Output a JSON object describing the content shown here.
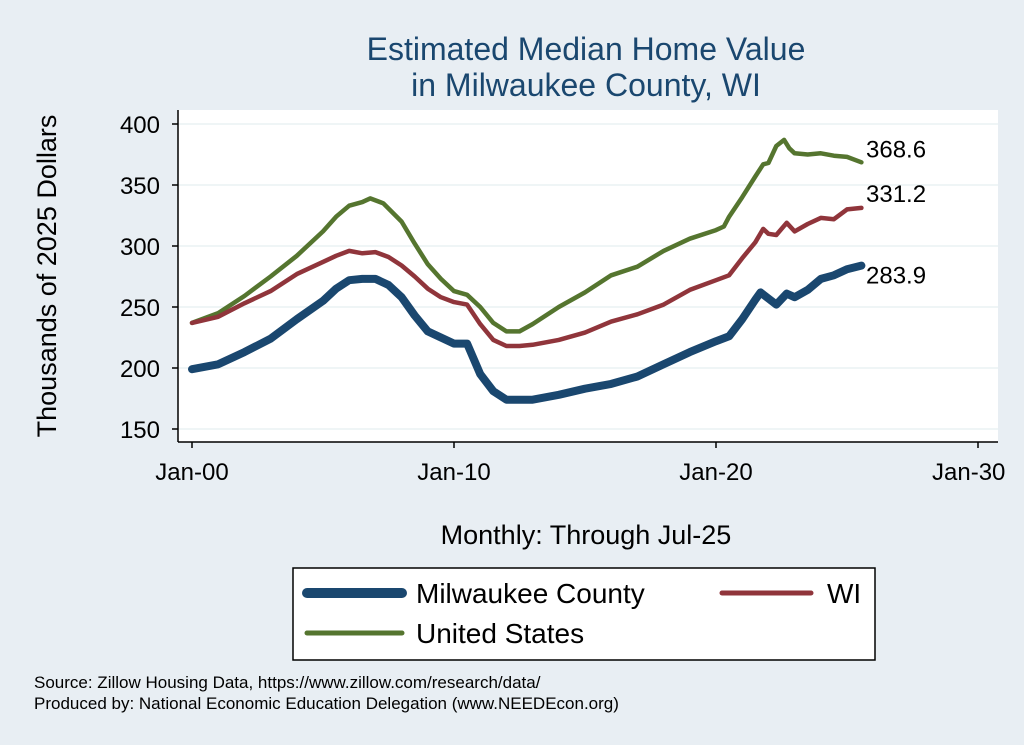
{
  "chart_data": {
    "type": "line",
    "title": [
      "Estimated Median Home Value",
      "in Milwaukee County, WI"
    ],
    "xlabel": "Monthly: Through Jul-25",
    "ylabel": "Thousands of 2025 Dollars",
    "x_range": [
      2000,
      2030
    ],
    "ylim": [
      140,
      410
    ],
    "x_tick_labels": [
      {
        "x": 2000,
        "label": "Jan-00"
      },
      {
        "x": 2010,
        "label": "Jan-10"
      },
      {
        "x": 2020,
        "label": "Jan-20"
      },
      {
        "x": 2030,
        "label": "Jan-30"
      }
    ],
    "y_ticks": [
      150,
      200,
      250,
      300,
      350,
      400
    ],
    "grid": true,
    "legend_position": "bottom",
    "series": [
      {
        "name": "Milwaukee County",
        "color": "#1a476f",
        "end_label": "283.9",
        "points": [
          [
            2000.0,
            199
          ],
          [
            2001.0,
            203
          ],
          [
            2002.0,
            213
          ],
          [
            2003.0,
            224
          ],
          [
            2004.0,
            240
          ],
          [
            2005.0,
            255
          ],
          [
            2005.5,
            265
          ],
          [
            2006.0,
            272
          ],
          [
            2006.5,
            273
          ],
          [
            2007.0,
            273
          ],
          [
            2007.5,
            268
          ],
          [
            2008.0,
            258
          ],
          [
            2008.5,
            243
          ],
          [
            2009.0,
            230
          ],
          [
            2009.5,
            225
          ],
          [
            2010.0,
            220
          ],
          [
            2010.5,
            220
          ],
          [
            2011.0,
            195
          ],
          [
            2011.5,
            181
          ],
          [
            2012.0,
            174
          ],
          [
            2012.5,
            174
          ],
          [
            2013.0,
            174
          ],
          [
            2014.0,
            178
          ],
          [
            2015.0,
            183
          ],
          [
            2016.0,
            187
          ],
          [
            2017.0,
            193
          ],
          [
            2018.0,
            203
          ],
          [
            2019.0,
            213
          ],
          [
            2020.0,
            222
          ],
          [
            2020.5,
            226
          ],
          [
            2021.0,
            240
          ],
          [
            2021.5,
            256
          ],
          [
            2021.7,
            262
          ],
          [
            2022.0,
            257
          ],
          [
            2022.3,
            252
          ],
          [
            2022.7,
            261
          ],
          [
            2023.0,
            258
          ],
          [
            2023.5,
            264
          ],
          [
            2024.0,
            273
          ],
          [
            2024.5,
            276
          ],
          [
            2025.0,
            281
          ],
          [
            2025.55,
            283.9
          ]
        ]
      },
      {
        "name": "WI",
        "color": "#90353b",
        "end_label": "331.2",
        "points": [
          [
            2000.0,
            237
          ],
          [
            2001.0,
            242
          ],
          [
            2002.0,
            253
          ],
          [
            2003.0,
            263
          ],
          [
            2004.0,
            277
          ],
          [
            2005.0,
            287
          ],
          [
            2005.5,
            292
          ],
          [
            2006.0,
            296
          ],
          [
            2006.5,
            294
          ],
          [
            2007.0,
            295
          ],
          [
            2007.5,
            291
          ],
          [
            2008.0,
            284
          ],
          [
            2008.5,
            275
          ],
          [
            2009.0,
            265
          ],
          [
            2009.5,
            258
          ],
          [
            2010.0,
            254
          ],
          [
            2010.5,
            252
          ],
          [
            2011.0,
            236
          ],
          [
            2011.5,
            223
          ],
          [
            2012.0,
            218
          ],
          [
            2012.5,
            218
          ],
          [
            2013.0,
            219
          ],
          [
            2014.0,
            223
          ],
          [
            2015.0,
            229
          ],
          [
            2016.0,
            238
          ],
          [
            2017.0,
            244
          ],
          [
            2018.0,
            252
          ],
          [
            2019.0,
            264
          ],
          [
            2020.0,
            272
          ],
          [
            2020.5,
            276
          ],
          [
            2021.0,
            290
          ],
          [
            2021.5,
            303
          ],
          [
            2021.8,
            314
          ],
          [
            2022.0,
            310
          ],
          [
            2022.3,
            309
          ],
          [
            2022.7,
            319
          ],
          [
            2023.0,
            312
          ],
          [
            2023.5,
            318
          ],
          [
            2024.0,
            323
          ],
          [
            2024.5,
            322
          ],
          [
            2025.0,
            330
          ],
          [
            2025.55,
            331.2
          ]
        ]
      },
      {
        "name": "United States",
        "color": "#55752f",
        "end_label": "368.6",
        "points": [
          [
            2000.0,
            237
          ],
          [
            2001.0,
            245
          ],
          [
            2002.0,
            259
          ],
          [
            2003.0,
            275
          ],
          [
            2004.0,
            292
          ],
          [
            2005.0,
            312
          ],
          [
            2005.5,
            324
          ],
          [
            2006.0,
            333
          ],
          [
            2006.5,
            336
          ],
          [
            2006.8,
            339
          ],
          [
            2007.3,
            335
          ],
          [
            2008.0,
            320
          ],
          [
            2008.5,
            302
          ],
          [
            2009.0,
            285
          ],
          [
            2009.5,
            273
          ],
          [
            2010.0,
            263
          ],
          [
            2010.5,
            260
          ],
          [
            2011.0,
            250
          ],
          [
            2011.5,
            237
          ],
          [
            2012.0,
            230
          ],
          [
            2012.5,
            230
          ],
          [
            2013.0,
            236
          ],
          [
            2014.0,
            250
          ],
          [
            2015.0,
            262
          ],
          [
            2016.0,
            276
          ],
          [
            2017.0,
            283
          ],
          [
            2018.0,
            296
          ],
          [
            2019.0,
            306
          ],
          [
            2020.0,
            313
          ],
          [
            2020.3,
            316
          ],
          [
            2020.5,
            324
          ],
          [
            2021.0,
            340
          ],
          [
            2021.5,
            357
          ],
          [
            2021.8,
            367
          ],
          [
            2022.0,
            368
          ],
          [
            2022.3,
            382
          ],
          [
            2022.6,
            387
          ],
          [
            2022.8,
            380
          ],
          [
            2023.0,
            376
          ],
          [
            2023.5,
            375
          ],
          [
            2024.0,
            376
          ],
          [
            2024.5,
            374
          ],
          [
            2025.0,
            373
          ],
          [
            2025.55,
            368.6
          ]
        ]
      }
    ]
  },
  "legend": {
    "items": [
      {
        "label": "Milwaukee County",
        "color": "#1a476f"
      },
      {
        "label": "WI",
        "color": "#90353b"
      },
      {
        "label": "United States",
        "color": "#55752f"
      }
    ]
  },
  "footer": {
    "source": "Source: Zillow Housing Data, https://www.zillow.com/research/data/",
    "produced_by": "Produced by: National Economic Education Delegation (www.NEEDEcon.org)"
  }
}
